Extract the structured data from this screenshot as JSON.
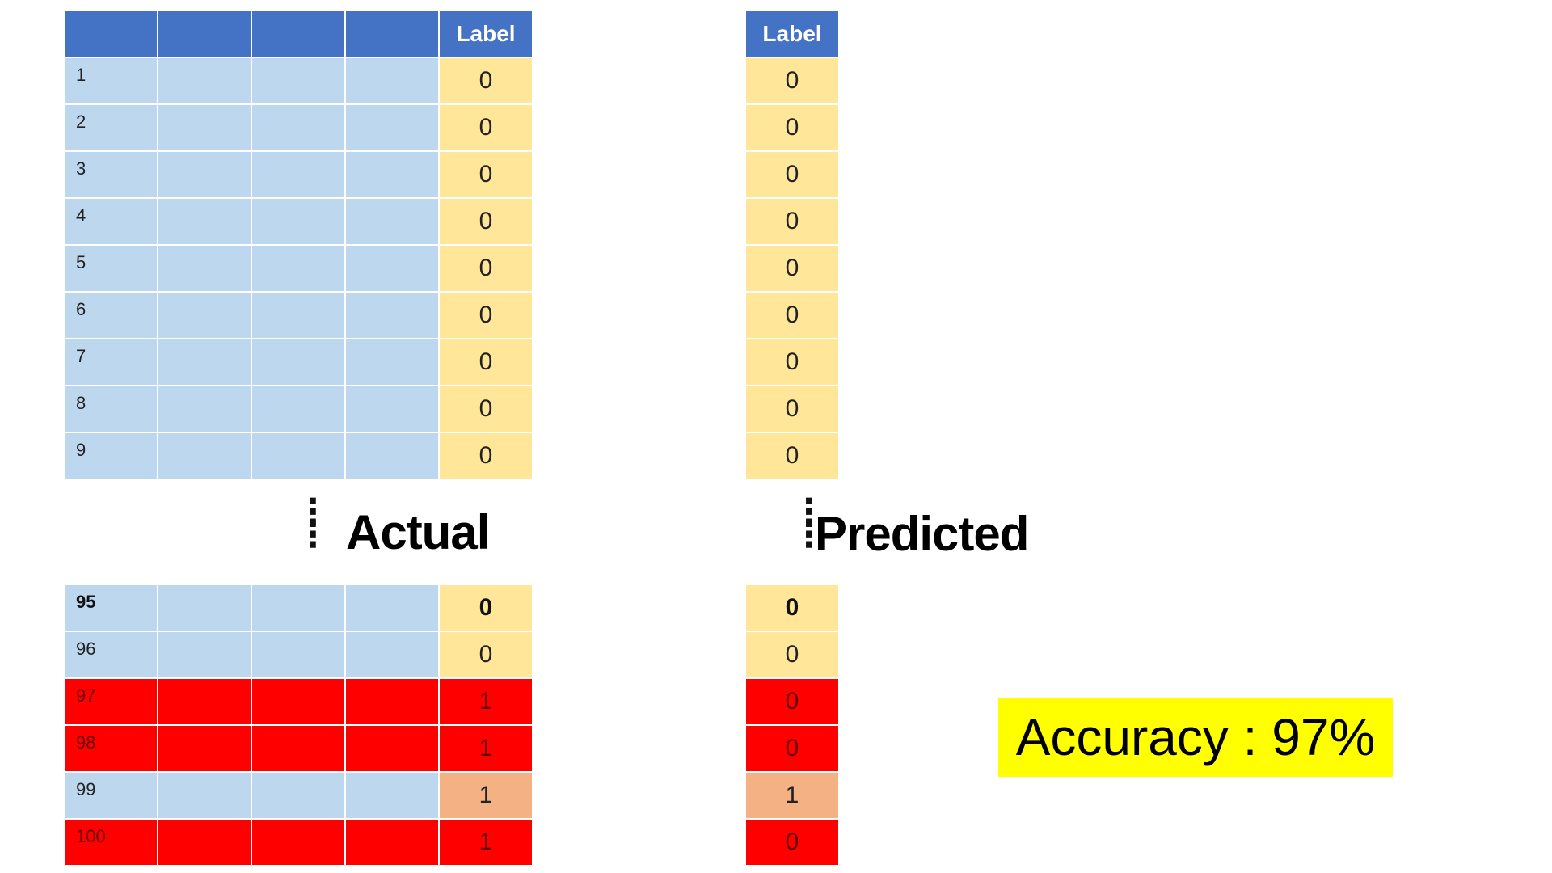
{
  "actual": {
    "title": "Actual",
    "header": [
      "",
      "",
      "",
      "",
      "Label"
    ],
    "top_rows": [
      {
        "index": "1",
        "label": "0"
      },
      {
        "index": "2",
        "label": "0"
      },
      {
        "index": "3",
        "label": "0"
      },
      {
        "index": "4",
        "label": "0"
      },
      {
        "index": "5",
        "label": "0"
      },
      {
        "index": "6",
        "label": "0"
      },
      {
        "index": "7",
        "label": "0"
      },
      {
        "index": "8",
        "label": "0"
      },
      {
        "index": "9",
        "label": "0"
      }
    ],
    "bottom_rows": [
      {
        "index": "95",
        "label": "0",
        "row_color": "blue",
        "label_color": "yellow",
        "bold": true
      },
      {
        "index": "96",
        "label": "0",
        "row_color": "blue",
        "label_color": "yellow",
        "bold": false
      },
      {
        "index": "97",
        "label": "1",
        "row_color": "red",
        "label_color": "red",
        "bold": false
      },
      {
        "index": "98",
        "label": "1",
        "row_color": "red",
        "label_color": "red",
        "bold": false
      },
      {
        "index": "99",
        "label": "1",
        "row_color": "blue",
        "label_color": "salmon",
        "bold": false
      },
      {
        "index": "100",
        "label": "1",
        "row_color": "red",
        "label_color": "red",
        "bold": false
      }
    ]
  },
  "predicted": {
    "title": "Predicted",
    "header": "Label",
    "top_rows": [
      "0",
      "0",
      "0",
      "0",
      "0",
      "0",
      "0",
      "0",
      "0"
    ],
    "bottom_rows": [
      {
        "label": "0",
        "color": "yellow",
        "bold": true
      },
      {
        "label": "0",
        "color": "yellow",
        "bold": false
      },
      {
        "label": "0",
        "color": "red",
        "bold": false
      },
      {
        "label": "0",
        "color": "red",
        "bold": false
      },
      {
        "label": "1",
        "color": "salmon",
        "bold": false
      },
      {
        "label": "0",
        "color": "red",
        "bold": false
      }
    ]
  },
  "accuracy": {
    "text": "Accuracy : 97%"
  },
  "colors": {
    "header": "#4472c4",
    "feature_cell": "#bdd7ee",
    "label_cell": "#ffe699",
    "error_row": "#ff0000",
    "highlight_cell": "#f4b183",
    "accuracy_background": "#ffff00"
  }
}
